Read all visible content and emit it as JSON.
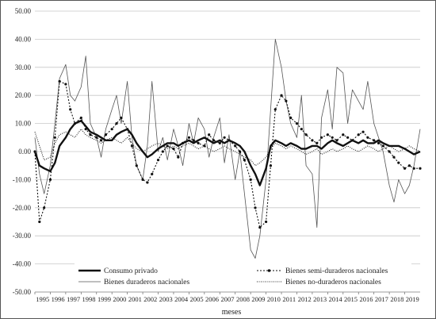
{
  "chart_data": {
    "type": "line",
    "title": "",
    "xlabel": "meses",
    "ylabel": "",
    "ylim": [
      -50,
      50
    ],
    "yticks": [
      "50.00",
      "40.00",
      "30.00",
      "20.00",
      "10.00",
      "0.00",
      "-10.00",
      "-20.00",
      "-30.00",
      "-40.00",
      "-50.00"
    ],
    "ytick_values": [
      50,
      40,
      30,
      20,
      10,
      0,
      -10,
      -20,
      -30,
      -40,
      -50
    ],
    "xticks": [
      "1995",
      "1996",
      "1997",
      "1998",
      "1999",
      "2000",
      "2001",
      "2002",
      "2003",
      "2004",
      "2005",
      "2006",
      "2007",
      "2008",
      "2009",
      "2010",
      "2011",
      "2012",
      "2013",
      "2014",
      "2015",
      "2016",
      "2017",
      "2018",
      "2019"
    ],
    "xrange": [
      1995,
      2020
    ],
    "grid": "horizontal",
    "legend_placement": "bottom",
    "series": [
      {
        "name": "Consumo privado",
        "style": "thick-solid",
        "x": [
          1995.0,
          1995.3,
          1995.6,
          1996.0,
          1996.3,
          1996.6,
          1997.0,
          1997.3,
          1997.6,
          1998.0,
          1998.3,
          1998.6,
          1999.0,
          1999.3,
          1999.6,
          2000.0,
          2000.3,
          2000.6,
          2001.0,
          2001.3,
          2001.6,
          2002.0,
          2002.3,
          2002.6,
          2003.0,
          2003.3,
          2003.6,
          2004.0,
          2004.3,
          2004.6,
          2005.0,
          2005.3,
          2005.6,
          2006.0,
          2006.3,
          2006.6,
          2007.0,
          2007.3,
          2007.6,
          2008.0,
          2008.3,
          2008.6,
          2009.0,
          2009.3,
          2009.6,
          2010.0,
          2010.3,
          2010.6,
          2011.0,
          2011.3,
          2011.6,
          2012.0,
          2012.3,
          2012.6,
          2013.0,
          2013.3,
          2013.6,
          2014.0,
          2014.3,
          2014.6,
          2015.0,
          2015.3,
          2015.6,
          2016.0,
          2016.3,
          2016.6,
          2017.0,
          2017.3,
          2017.6,
          2018.0,
          2018.3,
          2018.6,
          2019.0,
          2019.3,
          2019.6,
          2020.0
        ],
        "y": [
          0,
          -5,
          -6,
          -7,
          -4,
          2,
          5,
          8,
          10,
          11,
          9,
          7,
          6,
          5,
          4,
          4,
          6,
          7,
          8,
          6,
          3,
          0,
          -2,
          -1,
          1,
          2,
          3,
          3,
          2,
          3,
          4,
          3,
          4,
          5,
          4,
          3,
          4,
          3,
          4,
          3,
          2,
          0,
          -5,
          -8,
          -12,
          -6,
          2,
          4,
          3,
          2,
          3,
          2,
          1,
          1,
          2,
          2,
          1,
          3,
          4,
          3,
          2,
          3,
          4,
          3,
          4,
          3,
          3,
          4,
          3,
          2,
          2,
          2,
          1,
          0,
          -1,
          0
        ]
      },
      {
        "name": "Bienes semi-duraderos nacionales",
        "style": "dotted-markers",
        "x": [
          1995.0,
          1995.3,
          1995.6,
          1996.0,
          1996.3,
          1996.6,
          1997.0,
          1997.3,
          1997.6,
          1998.0,
          1998.3,
          1998.6,
          1999.0,
          1999.3,
          1999.6,
          2000.0,
          2000.3,
          2000.6,
          2001.0,
          2001.3,
          2001.6,
          2002.0,
          2002.3,
          2002.6,
          2003.0,
          2003.3,
          2003.6,
          2004.0,
          2004.3,
          2004.6,
          2005.0,
          2005.3,
          2005.6,
          2006.0,
          2006.3,
          2006.6,
          2007.0,
          2007.3,
          2007.6,
          2008.0,
          2008.3,
          2008.6,
          2009.0,
          2009.3,
          2009.6,
          2010.0,
          2010.3,
          2010.6,
          2011.0,
          2011.3,
          2011.6,
          2012.0,
          2012.3,
          2012.6,
          2013.0,
          2013.3,
          2013.6,
          2014.0,
          2014.3,
          2014.6,
          2015.0,
          2015.3,
          2015.6,
          2016.0,
          2016.3,
          2016.6,
          2017.0,
          2017.3,
          2017.6,
          2018.0,
          2018.3,
          2018.6,
          2019.0,
          2019.3,
          2019.6,
          2020.0
        ],
        "y": [
          0,
          -25,
          -20,
          -10,
          5,
          25,
          24,
          15,
          10,
          12,
          8,
          6,
          5,
          4,
          6,
          8,
          10,
          12,
          8,
          2,
          -5,
          -10,
          -11,
          -8,
          -3,
          0,
          2,
          1,
          -2,
          3,
          5,
          4,
          3,
          2,
          6,
          4,
          3,
          5,
          4,
          2,
          0,
          -3,
          -10,
          -20,
          -27,
          -25,
          -5,
          15,
          20,
          18,
          12,
          10,
          8,
          6,
          4,
          3,
          5,
          6,
          5,
          4,
          6,
          5,
          4,
          6,
          7,
          5,
          4,
          3,
          2,
          0,
          -2,
          -4,
          -6,
          -5,
          -6,
          -6
        ]
      },
      {
        "name": "Bienes duraderos nacionales",
        "style": "thin-solid",
        "x": [
          1995.0,
          1995.3,
          1995.6,
          1996.0,
          1996.3,
          1996.6,
          1997.0,
          1997.3,
          1997.6,
          1998.0,
          1998.3,
          1998.6,
          1999.0,
          1999.3,
          1999.6,
          2000.0,
          2000.3,
          2000.6,
          2001.0,
          2001.3,
          2001.6,
          2002.0,
          2002.3,
          2002.6,
          2003.0,
          2003.3,
          2003.6,
          2004.0,
          2004.3,
          2004.6,
          2005.0,
          2005.3,
          2005.6,
          2006.0,
          2006.3,
          2006.6,
          2007.0,
          2007.3,
          2007.6,
          2008.0,
          2008.3,
          2008.6,
          2009.0,
          2009.3,
          2009.6,
          2010.0,
          2010.3,
          2010.6,
          2011.0,
          2011.3,
          2011.6,
          2012.0,
          2012.3,
          2012.6,
          2013.0,
          2013.3,
          2013.6,
          2014.0,
          2014.3,
          2014.6,
          2015.0,
          2015.3,
          2015.6,
          2016.0,
          2016.3,
          2016.6,
          2017.0,
          2017.3,
          2017.6,
          2018.0,
          2018.3,
          2018.6,
          2019.0,
          2019.3,
          2019.6,
          2020.0
        ],
        "y": [
          5,
          -8,
          -15,
          -5,
          10,
          26,
          31,
          20,
          18,
          23,
          34,
          10,
          5,
          -2,
          8,
          15,
          20,
          10,
          25,
          5,
          -5,
          -10,
          2,
          25,
          0,
          5,
          -3,
          8,
          2,
          -5,
          10,
          3,
          12,
          8,
          -2,
          5,
          12,
          -4,
          6,
          -10,
          0,
          -15,
          -35,
          -38,
          -30,
          -10,
          15,
          40,
          30,
          18,
          10,
          5,
          20,
          -5,
          -8,
          -27,
          12,
          22,
          8,
          30,
          28,
          10,
          22,
          18,
          15,
          25,
          10,
          5,
          0,
          -12,
          -18,
          -10,
          -15,
          -12,
          -5,
          8
        ]
      },
      {
        "name": "Bienes no-duraderos nacionales",
        "style": "fine-dotted",
        "x": [
          1995.0,
          1995.3,
          1995.6,
          1996.0,
          1996.3,
          1996.6,
          1997.0,
          1997.3,
          1997.6,
          1998.0,
          1998.3,
          1998.6,
          1999.0,
          1999.3,
          1999.6,
          2000.0,
          2000.3,
          2000.6,
          2001.0,
          2001.3,
          2001.6,
          2002.0,
          2002.3,
          2002.6,
          2003.0,
          2003.3,
          2003.6,
          2004.0,
          2004.3,
          2004.6,
          2005.0,
          2005.3,
          2005.6,
          2006.0,
          2006.3,
          2006.6,
          2007.0,
          2007.3,
          2007.6,
          2008.0,
          2008.3,
          2008.6,
          2009.0,
          2009.3,
          2009.6,
          2010.0,
          2010.3,
          2010.6,
          2011.0,
          2011.3,
          2011.6,
          2012.0,
          2012.3,
          2012.6,
          2013.0,
          2013.3,
          2013.6,
          2014.0,
          2014.3,
          2014.6,
          2015.0,
          2015.3,
          2015.6,
          2016.0,
          2016.3,
          2016.6,
          2017.0,
          2017.3,
          2017.6,
          2018.0,
          2018.3,
          2018.6,
          2019.0,
          2019.3,
          2019.6,
          2020.0
        ],
        "y": [
          7,
          2,
          -3,
          -2,
          3,
          6,
          7,
          6,
          5,
          8,
          6,
          5,
          4,
          3,
          4,
          5,
          4,
          3,
          5,
          3,
          1,
          0,
          1,
          2,
          3,
          2,
          1,
          2,
          1,
          2,
          3,
          2,
          1,
          2,
          1,
          0,
          1,
          2,
          1,
          0,
          -1,
          -2,
          -3,
          -5,
          -4,
          -2,
          1,
          3,
          2,
          1,
          2,
          1,
          0,
          -1,
          0,
          1,
          -1,
          0,
          1,
          0,
          1,
          2,
          1,
          0,
          1,
          2,
          1,
          0,
          1,
          2,
          1,
          0,
          1,
          2,
          1,
          0
        ]
      }
    ]
  }
}
